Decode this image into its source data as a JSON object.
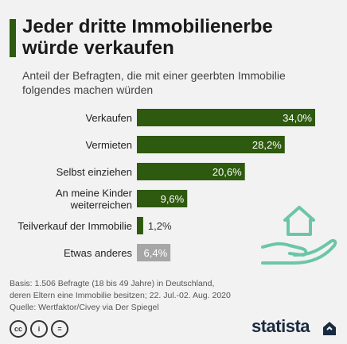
{
  "header": {
    "title_line1": "Jeder dritte Immobilienerbe",
    "title_line2": "würde verkaufen",
    "subtitle_line1": "Anteil der Befragten, die mit einer geerbten Immobilie",
    "subtitle_line2": "folgendes machen würden"
  },
  "chart_data": {
    "type": "bar",
    "orientation": "horizontal",
    "categories": [
      [
        "Verkaufen"
      ],
      [
        "Vermieten"
      ],
      [
        "Selbst einziehen"
      ],
      [
        "An meine Kinder",
        "weiterreichen"
      ],
      [
        "Teilverkauf der Immobilie"
      ],
      [
        "Etwas anderes"
      ]
    ],
    "values": [
      34.0,
      28.2,
      20.6,
      9.6,
      1.2,
      6.4
    ],
    "value_labels": [
      "34,0%",
      "28,2%",
      "20,6%",
      "9,6%",
      "1,2%",
      "6,4%"
    ],
    "bar_colors": [
      "#2d5a0e",
      "#2d5a0e",
      "#2d5a0e",
      "#2d5a0e",
      "#2d5a0e",
      "#a6a6a6"
    ],
    "xlim": [
      0,
      34.0
    ],
    "grid": false,
    "legend": "none"
  },
  "footer": {
    "basis_line1": "Basis: 1.506 Befragte (18 bis 49 Jahre) in Deutschland,",
    "basis_line2": "deren Eltern eine Immobilie besitzen; 22. Jul.-02. Aug. 2020",
    "source": "Quelle: Wertfaktor/Civey via Der Spiegel",
    "cc_labels": [
      "cc",
      "i",
      "="
    ],
    "logo": "statista"
  },
  "icons": {
    "illustration": "hand-holding-house-icon",
    "accent": "#2d5a0e"
  }
}
